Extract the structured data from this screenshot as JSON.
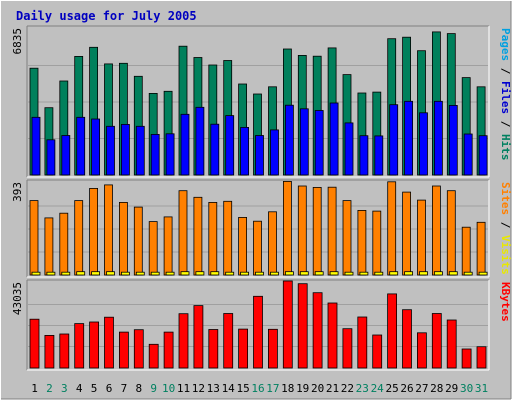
{
  "chart_data": {
    "type": "bar",
    "title": "Daily usage for July 2005",
    "categories": [
      "1",
      "2",
      "3",
      "4",
      "5",
      "6",
      "7",
      "8",
      "9",
      "10",
      "11",
      "12",
      "13",
      "14",
      "15",
      "16",
      "17",
      "18",
      "19",
      "20",
      "21",
      "22",
      "23",
      "24",
      "25",
      "26",
      "27",
      "28",
      "29",
      "30",
      "31"
    ],
    "weekend_days": [
      "2",
      "3",
      "9",
      "10",
      "16",
      "17",
      "23",
      "24",
      "30",
      "31"
    ],
    "panels": [
      {
        "name": "pages-files-hits",
        "scale_label": "6835",
        "ymax": 6835,
        "right_label_parts": [
          {
            "text": "Pages",
            "color": "#00a0e0"
          },
          {
            "text": " / ",
            "color": "#000000"
          },
          {
            "text": "Files",
            "color": "#0000d0"
          },
          {
            "text": " / ",
            "color": "#000000"
          },
          {
            "text": "Hits",
            "color": "#008060"
          }
        ],
        "series": [
          {
            "name": "Hits",
            "color": "#00805c",
            "values": [
              5000,
              3150,
              4400,
              5550,
              5980,
              5200,
              5230,
              4620,
              3820,
              3920,
              6030,
              5500,
              5150,
              5360,
              4260,
              3790,
              4130,
              5900,
              5600,
              5560,
              5950,
              4700,
              3840,
              3880,
              6380,
              6450,
              5820,
              6700,
              6620,
              4560,
              4130
            ]
          },
          {
            "name": "Files",
            "color": "#0000ff",
            "values": [
              2700,
              1650,
              1850,
              2700,
              2620,
              2280,
              2370,
              2280,
              1900,
              1930,
              2840,
              3170,
              2380,
              2780,
              2230,
              1850,
              2110,
              3270,
              3100,
              3020,
              3370,
              2440,
              1840,
              1830,
              3290,
              3450,
              2910,
              3450,
              3260,
              1920,
              1840
            ]
          },
          {
            "name": "Pages",
            "color": "#00a0e0",
            "values": [
              0,
              0,
              0,
              0,
              0,
              0,
              0,
              0,
              0,
              0,
              0,
              0,
              0,
              0,
              0,
              0,
              0,
              0,
              0,
              0,
              0,
              0,
              0,
              0,
              0,
              0,
              0,
              0,
              0,
              0,
              0
            ]
          }
        ]
      },
      {
        "name": "sites-visits",
        "scale_label": "393",
        "ymax": 393,
        "right_label_parts": [
          {
            "text": "Sites",
            "color": "#ff8000"
          },
          {
            "text": " / ",
            "color": "#000000"
          },
          {
            "text": "Visits",
            "color": "#e8e800"
          }
        ],
        "series": [
          {
            "name": "Visits",
            "color": "#ff8000",
            "values": [
              318,
              244,
              264,
              318,
              370,
              385,
              310,
              290,
              228,
              248,
              360,
              332,
              310,
              315,
              246,
              230,
              270,
              400,
              380,
              374,
              375,
              318,
              276,
              273,
              398,
              354,
              320,
              380,
              360,
              204,
              225
            ]
          },
          {
            "name": "Sites",
            "color": "#ffff00",
            "values": [
              12,
              12,
              12,
              14,
              14,
              14,
              12,
              12,
              12,
              12,
              14,
              14,
              14,
              12,
              12,
              12,
              12,
              14,
              14,
              14,
              14,
              12,
              12,
              12,
              14,
              14,
              14,
              14,
              14,
              12,
              12
            ]
          }
        ]
      },
      {
        "name": "kbytes",
        "scale_label": "43035",
        "ymax": 43035,
        "right_label_parts": [
          {
            "text": "KBytes",
            "color": "#ff0000"
          }
        ],
        "series": [
          {
            "name": "KBytes",
            "color": "#ff0000",
            "values": [
              24700,
              16500,
              17200,
              22500,
              23300,
              25700,
              18200,
              19400,
              12000,
              18200,
              27500,
              31600,
              19500,
              27600,
              19700,
              36300,
              19600,
              44300,
              42700,
              38100,
              32900,
              19900,
              25800,
              16700,
              37500,
              29500,
              17800,
              27600,
              24300,
              9600,
              10800
            ]
          }
        ]
      }
    ]
  }
}
